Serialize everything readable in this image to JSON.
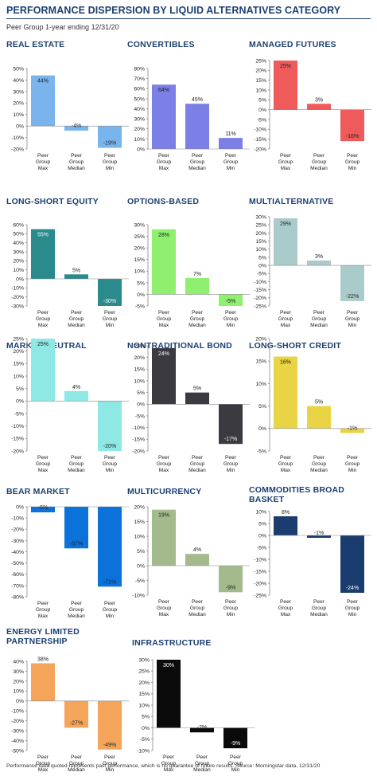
{
  "title": "PERFORMANCE DISPERSION BY LIQUID ALTERNATIVES CATEGORY",
  "subtitle": "Peer Group 1-year ending 12/31/20",
  "footnote": "Performance data quoted represents past performance, which is no guarantee of future results. Source: Morningstar data, 12/31/20",
  "chart_data": [
    {
      "type": "bar",
      "title": "REAL ESTATE",
      "categories": [
        [
          "Peer",
          "Group",
          "Max"
        ],
        [
          "Peer",
          "Group",
          "Median"
        ],
        [
          "Peer",
          "Group",
          "Min"
        ]
      ],
      "values": [
        44,
        -4,
        -19
      ],
      "labels": [
        "44%",
        "-4%",
        "-19%"
      ],
      "ylim": [
        -20,
        50
      ],
      "yticks": [
        -20,
        -10,
        0,
        10,
        20,
        30,
        40,
        50
      ],
      "color": "#7ab4ec"
    },
    {
      "type": "bar",
      "title": "CONVERTIBLES",
      "categories": [
        [
          "Peer",
          "Group",
          "Max"
        ],
        [
          "Peer",
          "Group",
          "Median"
        ],
        [
          "Peer",
          "Group",
          "Min"
        ]
      ],
      "values": [
        64,
        45,
        11
      ],
      "labels": [
        "64%",
        "45%",
        "11%"
      ],
      "ylim": [
        0,
        80
      ],
      "yticks": [
        0,
        10,
        20,
        30,
        40,
        50,
        60,
        70,
        80
      ],
      "color": "#7b7fe6"
    },
    {
      "type": "bar",
      "title": "MANAGED FUTURES",
      "categories": [
        [
          "Peer",
          "Group",
          "Max"
        ],
        [
          "Peer",
          "Group",
          "Median"
        ],
        [
          "Peer",
          "Group",
          "Min"
        ]
      ],
      "values": [
        25,
        3,
        -16
      ],
      "labels": [
        "25%",
        "3%",
        "-16%"
      ],
      "ylim": [
        -20,
        25
      ],
      "yticks": [
        -20,
        -15,
        -10,
        -5,
        0,
        5,
        10,
        15,
        20,
        25
      ],
      "color": "#ef5b5b"
    },
    {
      "type": "bar",
      "title": "LONG-SHORT EQUITY",
      "categories": [
        [
          "Peer",
          "Group",
          "Max"
        ],
        [
          "Peer",
          "Group",
          "Median"
        ],
        [
          "Peer",
          "Group",
          "Min"
        ]
      ],
      "values": [
        55,
        5,
        -30
      ],
      "labels": [
        "55%",
        "5%",
        "-30%"
      ],
      "ylim": [
        -30,
        60
      ],
      "yticks": [
        -30,
        -20,
        -10,
        0,
        10,
        20,
        30,
        40,
        50,
        60
      ],
      "color": "#2a8a8c"
    },
    {
      "type": "bar",
      "title": "OPTIONS-BASED",
      "categories": [
        [
          "Peer",
          "Group",
          "Max"
        ],
        [
          "Peer",
          "Group",
          "Median"
        ],
        [
          "Peer",
          "Group",
          "Min"
        ]
      ],
      "values": [
        28,
        7,
        -5
      ],
      "labels": [
        "28%",
        "7%",
        "-5%"
      ],
      "ylim": [
        -5,
        30
      ],
      "yticks": [
        -5,
        0,
        5,
        10,
        15,
        20,
        25,
        30
      ],
      "color": "#8ef06e"
    },
    {
      "type": "bar",
      "title": "MULTIALTERNATIVE",
      "categories": [
        [
          "Peer",
          "Group",
          "Max"
        ],
        [
          "Peer",
          "Group",
          "Median"
        ],
        [
          "Peer",
          "Group",
          "Min"
        ]
      ],
      "values": [
        29,
        3,
        -22
      ],
      "labels": [
        "29%",
        "3%",
        "-22%"
      ],
      "ylim": [
        -25,
        30
      ],
      "yticks": [
        -25,
        -20,
        -15,
        -10,
        -5,
        0,
        5,
        10,
        15,
        20,
        25,
        30
      ],
      "color": "#a9cccb"
    },
    {
      "type": "bar",
      "title": "MARKET NEUTRAL",
      "categories": [
        [
          "Peer",
          "Group",
          "Max"
        ],
        [
          "Peer",
          "Group",
          "Median"
        ],
        [
          "Peer",
          "Group",
          "Min"
        ]
      ],
      "values": [
        25,
        4,
        -20
      ],
      "labels": [
        "25%",
        "4%",
        "-20%"
      ],
      "ylim": [
        -20,
        25
      ],
      "yticks": [
        -20,
        -15,
        -10,
        -5,
        0,
        5,
        10,
        15,
        20,
        25
      ],
      "color": "#8ee8e4"
    },
    {
      "type": "bar",
      "title": "NONTRADITIONAL BOND",
      "categories": [
        [
          "Peer",
          "Group",
          "Max"
        ],
        [
          "Peer",
          "Group",
          "Median"
        ],
        [
          "Peer",
          "Group",
          "Min"
        ]
      ],
      "values": [
        24,
        5,
        -17
      ],
      "labels": [
        "24%",
        "5%",
        "-17%"
      ],
      "ylim": [
        -20,
        25
      ],
      "yticks": [
        -20,
        -15,
        -10,
        -5,
        0,
        5,
        10,
        15,
        20,
        25
      ],
      "color": "#3a3a40"
    },
    {
      "type": "bar",
      "title": "LONG-SHORT CREDIT",
      "categories": [
        [
          "Peer",
          "Group",
          "Max"
        ],
        [
          "Peer",
          "Group",
          "Median"
        ],
        [
          "Peer",
          "Group",
          "Min"
        ]
      ],
      "values": [
        16,
        5,
        -1
      ],
      "labels": [
        "16%",
        "5%",
        "-1%"
      ],
      "ylim": [
        -5,
        20
      ],
      "yticks": [
        -5,
        0,
        5,
        10,
        15,
        20
      ],
      "color": "#e8d444"
    },
    {
      "type": "bar",
      "title": "BEAR MARKET",
      "categories": [
        [
          "Peer",
          "Group",
          "Max"
        ],
        [
          "Peer",
          "Group",
          "Median"
        ],
        [
          "Peer",
          "Group",
          "Min"
        ]
      ],
      "values": [
        -5,
        -37,
        -71
      ],
      "labels": [
        "-5%",
        "-37%",
        "-71%"
      ],
      "ylim": [
        -80,
        0
      ],
      "yticks": [
        -80,
        -70,
        -60,
        -50,
        -40,
        -30,
        -20,
        -10,
        0
      ],
      "color": "#0a72d8"
    },
    {
      "type": "bar",
      "title": "MULTICURRENCY",
      "categories": [
        [
          "Peer",
          "Group",
          "Max"
        ],
        [
          "Peer",
          "Group",
          "Median"
        ],
        [
          "Peer",
          "Group",
          "Min"
        ]
      ],
      "values": [
        19,
        4,
        -9
      ],
      "labels": [
        "19%",
        "4%",
        "-9%"
      ],
      "ylim": [
        -10,
        20
      ],
      "yticks": [
        -10,
        -5,
        0,
        5,
        10,
        15,
        20
      ],
      "color": "#a3ba8c"
    },
    {
      "type": "bar",
      "title": [
        "COMMODITIES BROAD",
        "BASKET"
      ],
      "categories": [
        [
          "Peer",
          "Group",
          "Max"
        ],
        [
          "Peer",
          "Group",
          "Median"
        ],
        [
          "Peer",
          "Group",
          "Min"
        ]
      ],
      "values": [
        8,
        -1,
        -24
      ],
      "labels": [
        "8%",
        "-1%",
        "-24%"
      ],
      "ylim": [
        -25,
        10
      ],
      "yticks": [
        -25,
        -20,
        -15,
        -10,
        -5,
        0,
        5,
        10
      ],
      "color": "#1a3c6e"
    },
    {
      "type": "bar",
      "title": [
        "ENERGY LIMITED",
        "PARTNERSHIP"
      ],
      "categories": [
        [
          "Peer",
          "Group",
          "Max"
        ],
        [
          "Peer",
          "Group",
          "Median"
        ],
        [
          "Peer",
          "Group",
          "Min"
        ]
      ],
      "values": [
        38,
        -27,
        -49
      ],
      "labels": [
        "38%",
        "-27%",
        "-49%"
      ],
      "ylim": [
        -50,
        40
      ],
      "yticks": [
        -50,
        -40,
        -30,
        -20,
        -10,
        0,
        10,
        20,
        30,
        40
      ],
      "color": "#f4a55a"
    },
    {
      "type": "bar",
      "title": "INFRASTRUCTURE",
      "categories": [
        [
          "Peer",
          "Group",
          "Max"
        ],
        [
          "Peer",
          "Group",
          "Median"
        ],
        [
          "Peer",
          "Group",
          "Min"
        ]
      ],
      "values": [
        30,
        -2,
        -9
      ],
      "labels": [
        "30%",
        "-2%",
        "-9%"
      ],
      "ylim": [
        -10,
        30
      ],
      "yticks": [
        -10,
        -5,
        0,
        5,
        10,
        15,
        20,
        25,
        30
      ],
      "color": "#0a0a0a"
    }
  ]
}
